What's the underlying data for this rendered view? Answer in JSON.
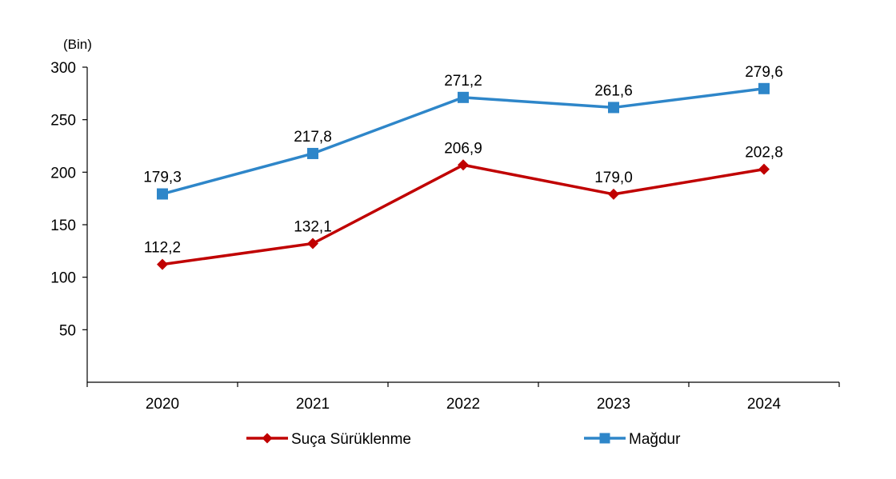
{
  "chart_data": {
    "type": "line",
    "unit_label": "(Bin)",
    "categories": [
      "2020",
      "2021",
      "2022",
      "2023",
      "2024"
    ],
    "ylim": [
      0,
      300
    ],
    "yticks": [
      50,
      100,
      150,
      200,
      250,
      300
    ],
    "ytick_labels": [
      "50",
      "100",
      "150",
      "200",
      "250",
      "300"
    ],
    "grid": false,
    "legend_position": "bottom",
    "series": [
      {
        "name": "Suça Sürüklenme",
        "color": "#c00000",
        "marker": "diamond",
        "values": [
          112.2,
          132.1,
          206.9,
          179.0,
          202.8
        ],
        "labels": [
          "112,2",
          "132,1",
          "206,9",
          "179,0",
          "202,8"
        ]
      },
      {
        "name": "Mağdur",
        "color": "#2e86c9",
        "marker": "square",
        "values": [
          179.3,
          217.8,
          271.2,
          261.6,
          279.6
        ],
        "labels": [
          "179,3",
          "217,8",
          "271,2",
          "261,6",
          "279,6"
        ]
      }
    ]
  }
}
